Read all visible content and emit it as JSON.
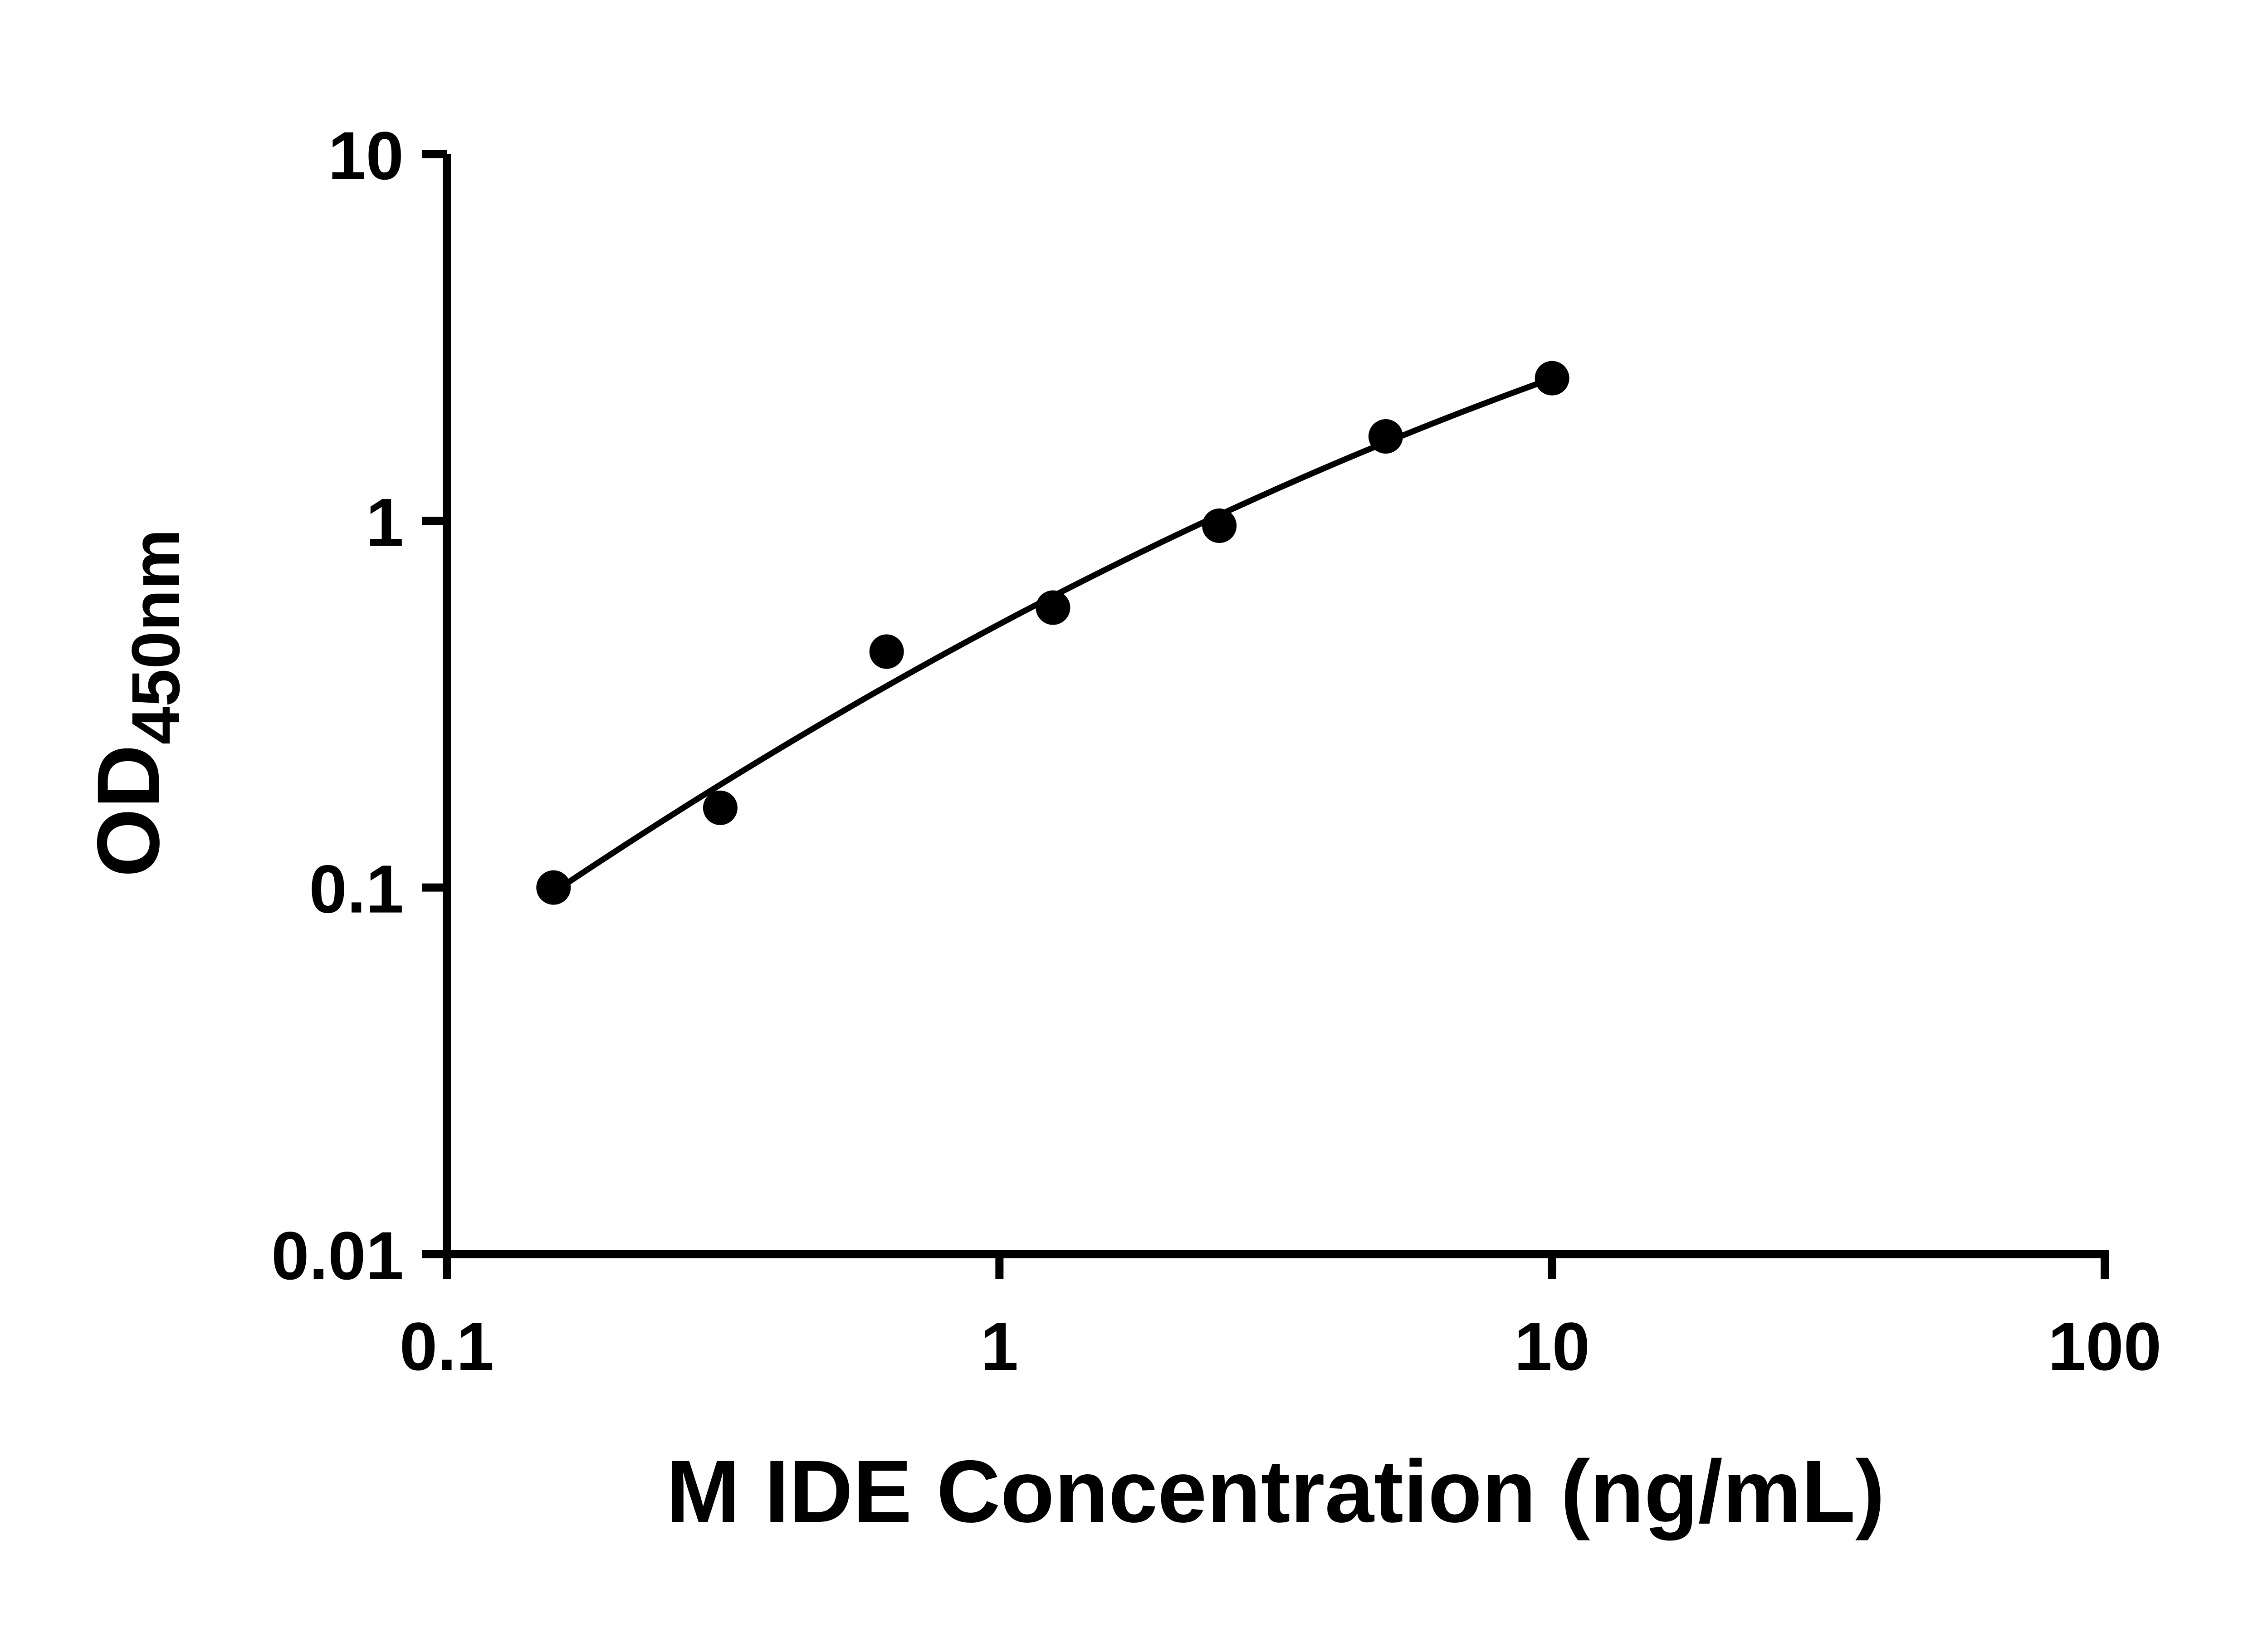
{
  "page": {
    "background_color": "#ffffff",
    "foreground_color": "#000000"
  },
  "chart_data": {
    "type": "scatter",
    "title": "",
    "xlabel": "M IDE Concentration (ng/mL)",
    "ylabel": "OD",
    "ylabel_subscript": "450nm",
    "x_scale": "log",
    "y_scale": "log",
    "xlim": [
      0.1,
      100
    ],
    "ylim": [
      0.01,
      10
    ],
    "x_ticks": [
      0.1,
      1,
      10,
      100
    ],
    "x_tick_labels": [
      "0.1",
      "1",
      "10",
      "100"
    ],
    "y_ticks": [
      0.01,
      0.1,
      1,
      10
    ],
    "y_tick_labels": [
      "0.01",
      "0.1",
      "1",
      "10"
    ],
    "grid": false,
    "legend": false,
    "marker_color": "#000000",
    "line_color": "#000000",
    "axis_color": "#000000",
    "series": [
      {
        "marker": "circle",
        "x": [
          0.156,
          0.3125,
          0.625,
          1.25,
          2.5,
          5,
          10
        ],
        "y": [
          0.1,
          0.165,
          0.44,
          0.58,
          0.97,
          1.7,
          2.45
        ]
      }
    ],
    "fit_line": {
      "present": true,
      "style": "smooth log-log quadratic fit through data points"
    }
  }
}
